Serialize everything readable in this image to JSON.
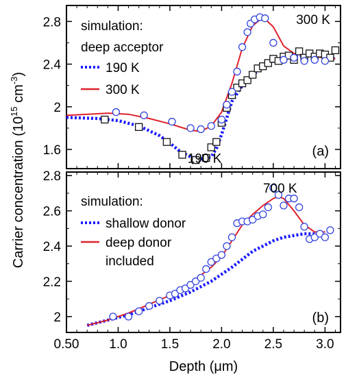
{
  "figure": {
    "ylabel": "Carrier concentration (10",
    "ylabel_sup": "15",
    "ylabel_unit": " cm",
    "ylabel_unit_sup": "-3",
    "ylabel_close": ")",
    "xlabel": "Depth (μm)"
  },
  "colors": {
    "red": "#e0202a",
    "blue": "#1a1aff",
    "circle": "#3344dd",
    "square": "#111111"
  },
  "chart_data": [
    {
      "type": "line",
      "panel_label": "(a)",
      "xlim": [
        0.5,
        3.15
      ],
      "ylim": [
        1.42,
        2.95
      ],
      "yticks": [
        1.6,
        2,
        2.4,
        2.8
      ],
      "ytick_labels": [
        "1.6",
        "2",
        "2.4",
        "2.8"
      ],
      "xticks": [
        0.5,
        1.0,
        1.5,
        2.0,
        2.5,
        3.0
      ],
      "legend": {
        "title1": "simulation:",
        "title2": "deep acceptor",
        "placement": "top-left"
      },
      "annotations": [
        {
          "text": "300 K",
          "x": 3.05,
          "y": 2.82
        },
        {
          "text": "190 K",
          "x": 2.0,
          "y": 1.52
        }
      ],
      "series": [
        {
          "name": "190 K",
          "kind": "line",
          "style": "dotted",
          "color": "blue",
          "x": [
            0.5,
            0.8,
            1.0,
            1.2,
            1.4,
            1.5,
            1.6,
            1.7,
            1.8,
            1.9,
            1.95,
            2.0,
            2.1,
            2.2,
            2.3,
            2.4,
            2.5,
            2.6,
            2.7,
            2.8,
            2.9,
            3.0,
            3.1
          ],
          "y": [
            1.9,
            1.89,
            1.87,
            1.82,
            1.73,
            1.66,
            1.58,
            1.53,
            1.51,
            1.53,
            1.61,
            1.74,
            2.05,
            2.2,
            2.3,
            2.37,
            2.43,
            2.45,
            2.47,
            2.48,
            2.48,
            2.47,
            2.45
          ]
        },
        {
          "name": "300 K",
          "kind": "line",
          "style": "solid",
          "color": "red",
          "x": [
            0.5,
            0.7,
            0.9,
            1.1,
            1.3,
            1.5,
            1.7,
            1.8,
            1.9,
            2.0,
            2.1,
            2.2,
            2.3,
            2.4,
            2.5,
            2.6,
            2.7,
            2.8,
            2.9,
            3.0,
            3.1
          ],
          "y": [
            1.92,
            1.93,
            1.94,
            1.93,
            1.89,
            1.84,
            1.78,
            1.77,
            1.82,
            1.95,
            2.22,
            2.55,
            2.76,
            2.84,
            2.75,
            2.57,
            2.5,
            2.48,
            2.47,
            2.46,
            2.45
          ]
        },
        {
          "name": "190 K data",
          "kind": "scatter",
          "marker": "square",
          "color": "square",
          "x": [
            0.87,
            1.2,
            1.47,
            1.62,
            1.75,
            1.85,
            1.9,
            1.95,
            2.0,
            2.05,
            2.1,
            2.15,
            2.2,
            2.25,
            2.3,
            2.35,
            2.4,
            2.45,
            2.5,
            2.55,
            2.6,
            2.65,
            2.7,
            2.75,
            2.8,
            2.85,
            2.9,
            2.95,
            3.0,
            3.05,
            3.1
          ],
          "y": [
            1.88,
            1.81,
            1.67,
            1.55,
            1.5,
            1.52,
            1.62,
            1.67,
            1.85,
            1.99,
            2.11,
            2.18,
            2.22,
            2.25,
            2.3,
            2.36,
            2.38,
            2.41,
            2.45,
            2.43,
            2.47,
            2.48,
            2.44,
            2.52,
            2.46,
            2.5,
            2.47,
            2.5,
            2.49,
            2.46,
            2.53
          ]
        },
        {
          "name": "300 K data",
          "kind": "scatter",
          "marker": "circle",
          "color": "circle",
          "x": [
            0.98,
            1.25,
            1.52,
            1.7,
            1.8,
            1.9,
            2.0,
            2.05,
            2.1,
            2.15,
            2.2,
            2.25,
            2.28,
            2.32,
            2.37,
            2.42,
            2.5,
            2.6,
            2.7,
            2.8,
            2.9,
            3.0
          ],
          "y": [
            1.95,
            1.92,
            1.86,
            1.8,
            1.79,
            1.82,
            1.88,
            2.02,
            2.14,
            2.33,
            2.56,
            2.7,
            2.78,
            2.82,
            2.84,
            2.83,
            2.6,
            2.44,
            2.46,
            2.43,
            2.44,
            2.43
          ]
        }
      ]
    },
    {
      "type": "line",
      "panel_label": "(b)",
      "xlim": [
        0.5,
        3.15
      ],
      "ylim": [
        1.91,
        2.82
      ],
      "yticks": [
        2,
        2.2,
        2.4,
        2.6,
        2.8
      ],
      "ytick_labels": [
        "2",
        "2.2",
        "2.4",
        "2.6",
        "2.8"
      ],
      "xticks": [
        0.5,
        1.0,
        1.5,
        2.0,
        2.5,
        3.0
      ],
      "xtick_labels": [
        "0.50",
        "1.0",
        "1.5",
        "2.0",
        "2.5",
        "3.0"
      ],
      "legend": {
        "title1": "simulation:",
        "placement": "top-left"
      },
      "annotations": [
        {
          "text": "700 K",
          "x": 2.73,
          "y": 2.73
        }
      ],
      "series": [
        {
          "name": "shallow donor",
          "kind": "line",
          "style": "dotted",
          "color": "blue",
          "x": [
            0.7,
            0.9,
            1.1,
            1.3,
            1.5,
            1.7,
            1.9,
            2.1,
            2.3,
            2.5,
            2.6,
            2.7,
            2.8,
            2.9,
            3.0
          ],
          "y": [
            1.95,
            1.98,
            2.01,
            2.05,
            2.09,
            2.14,
            2.2,
            2.28,
            2.37,
            2.43,
            2.45,
            2.46,
            2.47,
            2.47,
            2.48
          ]
        },
        {
          "name": "deep donor",
          "name2": "included",
          "kind": "line",
          "style": "solid",
          "color": "red",
          "x": [
            0.7,
            0.9,
            1.1,
            1.3,
            1.5,
            1.7,
            1.9,
            2.0,
            2.1,
            2.2,
            2.3,
            2.4,
            2.5,
            2.55,
            2.6,
            2.7,
            2.8,
            2.9,
            3.0
          ],
          "y": [
            1.95,
            1.98,
            2.02,
            2.07,
            2.12,
            2.19,
            2.28,
            2.34,
            2.43,
            2.52,
            2.58,
            2.63,
            2.67,
            2.68,
            2.67,
            2.6,
            2.52,
            2.48,
            2.48
          ]
        },
        {
          "name": "700 K data",
          "kind": "scatter",
          "marker": "circle",
          "color": "circle",
          "x": [
            0.95,
            1.1,
            1.2,
            1.3,
            1.4,
            1.5,
            1.55,
            1.6,
            1.65,
            1.7,
            1.75,
            1.8,
            1.85,
            1.9,
            1.95,
            2.0,
            2.05,
            2.1,
            2.15,
            2.2,
            2.25,
            2.3,
            2.35,
            2.4,
            2.45,
            2.5,
            2.55,
            2.6,
            2.65,
            2.7,
            2.75,
            2.8,
            2.85,
            2.9,
            2.95,
            3.0,
            3.05
          ],
          "y": [
            2.0,
            2.0,
            2.03,
            2.06,
            2.09,
            2.12,
            2.13,
            2.15,
            2.16,
            2.18,
            2.2,
            2.22,
            2.27,
            2.31,
            2.33,
            2.35,
            2.4,
            2.45,
            2.53,
            2.54,
            2.54,
            2.55,
            2.57,
            2.58,
            2.62,
            2.73,
            2.69,
            2.63,
            2.67,
            2.67,
            2.62,
            2.51,
            2.44,
            2.45,
            2.47,
            2.45,
            2.49
          ]
        }
      ]
    }
  ]
}
